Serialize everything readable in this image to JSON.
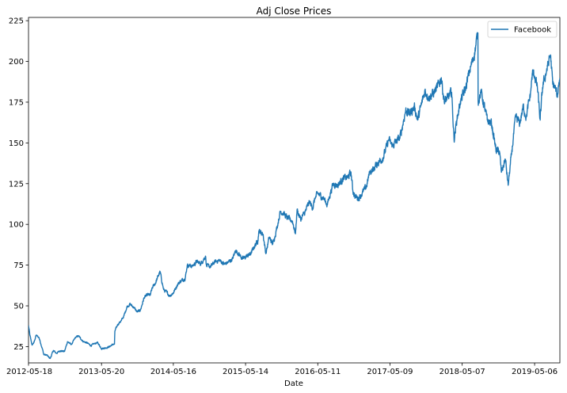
{
  "chart_data": {
    "type": "line",
    "title": "Adj Close Prices",
    "xlabel": "Date",
    "ylabel": "",
    "xlim": [
      "2012-05-18",
      "2019-09-10"
    ],
    "ylim": [
      15,
      227
    ],
    "yticks": [
      25,
      50,
      75,
      100,
      125,
      150,
      175,
      200,
      225
    ],
    "xticks": [
      "2012-05-18",
      "2013-05-20",
      "2014-05-16",
      "2015-05-14",
      "2016-05-11",
      "2017-05-09",
      "2018-05-07",
      "2019-05-06"
    ],
    "grid": false,
    "legend": {
      "location": "upper right",
      "entries": [
        "Facebook"
      ]
    },
    "series": [
      {
        "name": "Facebook",
        "color": "#1f77b4",
        "points": [
          [
            "2012-05-18",
            38
          ],
          [
            "2012-05-25",
            31.9
          ],
          [
            "2012-06-05",
            25.9
          ],
          [
            "2012-06-15",
            27.7
          ],
          [
            "2012-06-25",
            32
          ],
          [
            "2012-07-10",
            30.5
          ],
          [
            "2012-07-27",
            23.5
          ],
          [
            "2012-08-03",
            20
          ],
          [
            "2012-08-16",
            19.9
          ],
          [
            "2012-09-04",
            17.7
          ],
          [
            "2012-09-20",
            22.6
          ],
          [
            "2012-10-05",
            20.9
          ],
          [
            "2012-10-25",
            22.5
          ],
          [
            "2012-11-15",
            22
          ],
          [
            "2012-11-30",
            28
          ],
          [
            "2012-12-20",
            26.3
          ],
          [
            "2013-01-10",
            30.8
          ],
          [
            "2013-01-25",
            31.5
          ],
          [
            "2013-02-15",
            28.3
          ],
          [
            "2013-03-08",
            27.3
          ],
          [
            "2013-03-28",
            25.6
          ],
          [
            "2013-04-15",
            26.9
          ],
          [
            "2013-05-01",
            27.4
          ],
          [
            "2013-05-20",
            23.8
          ],
          [
            "2013-06-10",
            24.2
          ],
          [
            "2013-06-28",
            24.9
          ],
          [
            "2013-07-15",
            26.3
          ],
          [
            "2013-07-24",
            26.5
          ],
          [
            "2013-07-26",
            34.4
          ],
          [
            "2013-08-09",
            38.5
          ],
          [
            "2013-08-28",
            41
          ],
          [
            "2013-09-10",
            44
          ],
          [
            "2013-09-25",
            49.5
          ],
          [
            "2013-10-10",
            51
          ],
          [
            "2013-10-30",
            49
          ],
          [
            "2013-11-15",
            46.2
          ],
          [
            "2013-12-02",
            47.5
          ],
          [
            "2013-12-20",
            55
          ],
          [
            "2014-01-10",
            57
          ],
          [
            "2014-01-20",
            56.5
          ],
          [
            "2014-01-30",
            61
          ],
          [
            "2014-02-15",
            64
          ],
          [
            "2014-03-10",
            71
          ],
          [
            "2014-03-28",
            60
          ],
          [
            "2014-04-15",
            58
          ],
          [
            "2014-04-28",
            56.1
          ],
          [
            "2014-05-16",
            58
          ],
          [
            "2014-06-05",
            62.9
          ],
          [
            "2014-06-20",
            65
          ],
          [
            "2014-07-15",
            67
          ],
          [
            "2014-07-25",
            75
          ],
          [
            "2014-08-20",
            74.4
          ],
          [
            "2014-09-10",
            77
          ],
          [
            "2014-10-02",
            76
          ],
          [
            "2014-10-25",
            80.5
          ],
          [
            "2014-10-30",
            74.5
          ],
          [
            "2014-11-20",
            74
          ],
          [
            "2014-12-10",
            77
          ],
          [
            "2015-01-02",
            78
          ],
          [
            "2015-01-28",
            75.6
          ],
          [
            "2015-02-18",
            77
          ],
          [
            "2015-03-10",
            79
          ],
          [
            "2015-03-25",
            84
          ],
          [
            "2015-04-10",
            82
          ],
          [
            "2015-04-29",
            78.8
          ],
          [
            "2015-05-14",
            80
          ],
          [
            "2015-06-10",
            82
          ],
          [
            "2015-06-25",
            86
          ],
          [
            "2015-07-15",
            90
          ],
          [
            "2015-07-20",
            96
          ],
          [
            "2015-08-10",
            94
          ],
          [
            "2015-08-24",
            82
          ],
          [
            "2015-09-10",
            92
          ],
          [
            "2015-09-28",
            88
          ],
          [
            "2015-10-15",
            96
          ],
          [
            "2015-11-05",
            108
          ],
          [
            "2015-11-20",
            107
          ],
          [
            "2015-12-10",
            104
          ],
          [
            "2016-01-05",
            102
          ],
          [
            "2016-01-20",
            94.2
          ],
          [
            "2016-01-28",
            109
          ],
          [
            "2016-02-15",
            103
          ],
          [
            "2016-03-10",
            108
          ],
          [
            "2016-03-30",
            114
          ],
          [
            "2016-04-15",
            110
          ],
          [
            "2016-04-28",
            116
          ],
          [
            "2016-05-11",
            119
          ],
          [
            "2016-06-10",
            116
          ],
          [
            "2016-06-28",
            112
          ],
          [
            "2016-07-15",
            120
          ],
          [
            "2016-07-28",
            125
          ],
          [
            "2016-08-20",
            124
          ],
          [
            "2016-09-15",
            128
          ],
          [
            "2016-10-10",
            129
          ],
          [
            "2016-10-25",
            132
          ],
          [
            "2016-11-03",
            121
          ],
          [
            "2016-11-15",
            117
          ],
          [
            "2016-12-01",
            116
          ],
          [
            "2016-12-20",
            119
          ],
          [
            "2017-01-10",
            123
          ],
          [
            "2017-01-27",
            132
          ],
          [
            "2017-02-15",
            134
          ],
          [
            "2017-03-10",
            138
          ],
          [
            "2017-04-05",
            141
          ],
          [
            "2017-05-03",
            152
          ],
          [
            "2017-05-20",
            148
          ],
          [
            "2017-06-10",
            151
          ],
          [
            "2017-06-28",
            153
          ],
          [
            "2017-07-27",
            170
          ],
          [
            "2017-08-15",
            168
          ],
          [
            "2017-09-10",
            172
          ],
          [
            "2017-09-25",
            164
          ],
          [
            "2017-10-15",
            174
          ],
          [
            "2017-11-01",
            182
          ],
          [
            "2017-11-20",
            178
          ],
          [
            "2017-12-10",
            180
          ],
          [
            "2018-01-02",
            184
          ],
          [
            "2018-01-22",
            190
          ],
          [
            "2018-02-06",
            175
          ],
          [
            "2018-02-25",
            178
          ],
          [
            "2018-03-15",
            181
          ],
          [
            "2018-03-27",
            152
          ],
          [
            "2018-04-10",
            164
          ],
          [
            "2018-04-26",
            174
          ],
          [
            "2018-05-07",
            178
          ],
          [
            "2018-05-25",
            184
          ],
          [
            "2018-06-15",
            195
          ],
          [
            "2018-07-05",
            203
          ],
          [
            "2018-07-25",
            217.5
          ],
          [
            "2018-07-26",
            176
          ],
          [
            "2018-08-10",
            181
          ],
          [
            "2018-08-25",
            173
          ],
          [
            "2018-09-10",
            164
          ],
          [
            "2018-10-01",
            162
          ],
          [
            "2018-10-25",
            145
          ],
          [
            "2018-11-10",
            145
          ],
          [
            "2018-11-20",
            132
          ],
          [
            "2018-12-10",
            140
          ],
          [
            "2018-12-24",
            124
          ],
          [
            "2019-01-10",
            143
          ],
          [
            "2019-01-31",
            166
          ],
          [
            "2019-02-20",
            162
          ],
          [
            "2019-03-10",
            172
          ],
          [
            "2019-03-25",
            166
          ],
          [
            "2019-04-15",
            180
          ],
          [
            "2019-04-25",
            193
          ],
          [
            "2019-05-06",
            191
          ],
          [
            "2019-05-20",
            184
          ],
          [
            "2019-06-03",
            164
          ],
          [
            "2019-06-15",
            184
          ],
          [
            "2019-07-10",
            197
          ],
          [
            "2019-07-25",
            204
          ],
          [
            "2019-08-05",
            186
          ],
          [
            "2019-08-20",
            183
          ],
          [
            "2019-08-28",
            178
          ],
          [
            "2019-09-05",
            187
          ],
          [
            "2019-09-10",
            190
          ]
        ]
      }
    ]
  }
}
